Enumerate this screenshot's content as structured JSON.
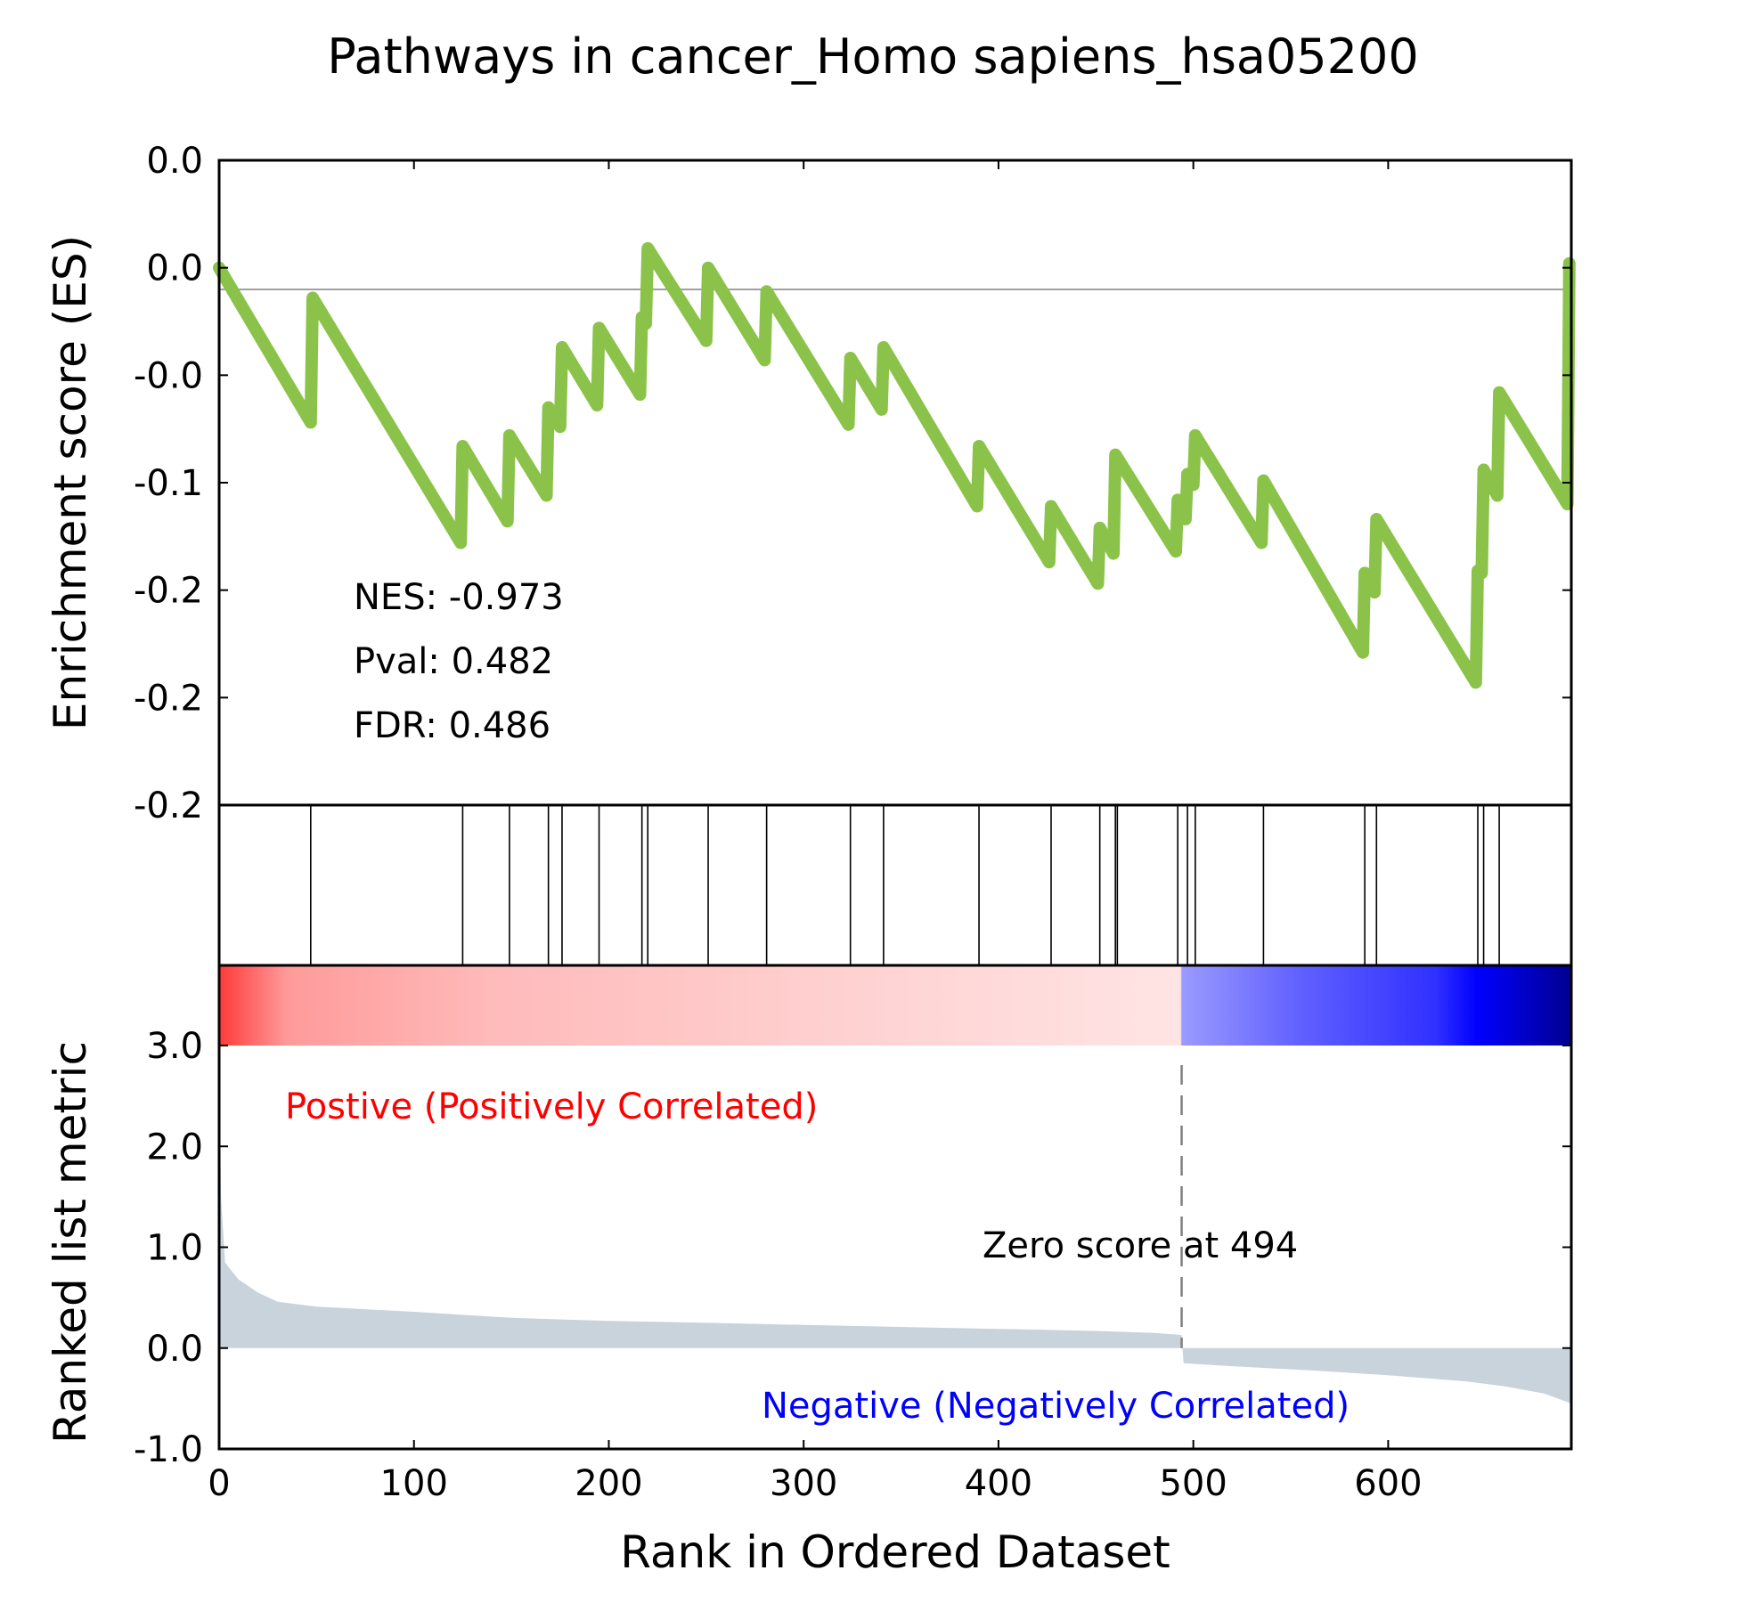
{
  "chart_data": {
    "type": "line",
    "title": "Pathways in cancer_Homo sapiens_hsa05200",
    "xlabel": "Rank in Ordered Dataset",
    "xlim": [
      0,
      694
    ],
    "x_ticks": [
      {
        "value": 0,
        "label": "0"
      },
      {
        "value": 100,
        "label": "100"
      },
      {
        "value": 200,
        "label": "200"
      },
      {
        "value": 300,
        "label": "300"
      },
      {
        "value": 400,
        "label": "400"
      },
      {
        "value": 500,
        "label": "500"
      },
      {
        "value": 600,
        "label": "600"
      }
    ],
    "es_panel": {
      "ylabel": "Enrichment score (ES)",
      "ylim": [
        -0.25,
        0.05
      ],
      "y_ticks": [
        {
          "value": 0.05,
          "label": "0.0"
        },
        {
          "value": 0.0,
          "label": "0.0"
        },
        {
          "value": -0.05,
          "label": "-0.0"
        },
        {
          "value": -0.1,
          "label": "-0.1"
        },
        {
          "value": -0.15,
          "label": "-0.2"
        },
        {
          "value": -0.2,
          "label": "-0.2"
        },
        {
          "value": -0.25,
          "label": "-0.2"
        }
      ],
      "line_color": "#8bc34a",
      "zero_line": true,
      "es_curve": {
        "x": [
          0,
          47,
          48,
          124,
          125,
          148,
          149,
          168,
          169,
          175,
          176,
          194,
          195,
          216,
          217,
          219,
          220,
          250,
          251,
          280,
          281,
          323,
          324,
          340,
          341,
          389,
          390,
          426,
          427,
          451,
          452,
          459,
          460,
          491,
          492,
          496,
          497,
          500,
          501,
          535,
          536,
          587,
          588,
          593,
          594,
          645,
          646,
          648,
          649,
          656,
          657,
          692,
          693
        ],
        "y": [
          0.0,
          -0.072,
          -0.014,
          -0.128,
          -0.083,
          -0.118,
          -0.078,
          -0.106,
          -0.065,
          -0.074,
          -0.037,
          -0.064,
          -0.028,
          -0.059,
          -0.023,
          -0.026,
          0.009,
          -0.034,
          0.0,
          -0.043,
          -0.011,
          -0.073,
          -0.042,
          -0.066,
          -0.037,
          -0.111,
          -0.083,
          -0.137,
          -0.111,
          -0.147,
          -0.121,
          -0.133,
          -0.087,
          -0.132,
          -0.108,
          -0.117,
          -0.096,
          -0.101,
          -0.078,
          -0.128,
          -0.099,
          -0.179,
          -0.142,
          -0.151,
          -0.117,
          -0.193,
          -0.141,
          -0.142,
          -0.094,
          -0.106,
          -0.058,
          -0.11,
          0.002
        ]
      },
      "annotations": {
        "nes": "NES: -0.973",
        "pval": "Pval: 0.482",
        "fdr": "FDR: 0.486"
      }
    },
    "hits_panel": {
      "hit_ranks": [
        47,
        125,
        149,
        169,
        176,
        195,
        217,
        220,
        251,
        281,
        324,
        341,
        390,
        427,
        452,
        460,
        461,
        492,
        497,
        501,
        536,
        588,
        594,
        646,
        649,
        657
      ]
    },
    "metric_panel": {
      "ylabel": "Ranked list metric",
      "ylim": [
        -1.0,
        3.0
      ],
      "y_ticks": [
        {
          "value": 3.0,
          "label": "3.0"
        },
        {
          "value": 2.0,
          "label": "2.0"
        },
        {
          "value": 1.0,
          "label": "1.0"
        },
        {
          "value": 0.0,
          "label": "0.0"
        },
        {
          "value": -1.0,
          "label": "-1.0"
        }
      ],
      "fill_color": "#c8d3dc",
      "zero_score_rank": 494,
      "zero_score_label": "Zero score at 494",
      "positive_label": "Postive (Positively Correlated)",
      "negative_label": "Negative (Negatively Correlated)",
      "positive_color": "#ff0000",
      "negative_color": "#0000ff",
      "metric_curve": {
        "x": [
          0,
          1,
          3,
          5,
          10,
          20,
          30,
          50,
          100,
          150,
          200,
          250,
          300,
          350,
          400,
          450,
          480,
          494,
          495,
          520,
          560,
          600,
          640,
          660,
          680,
          694
        ],
        "y": [
          2.9,
          1.5,
          0.85,
          0.8,
          0.68,
          0.55,
          0.46,
          0.41,
          0.36,
          0.3,
          0.27,
          0.25,
          0.23,
          0.21,
          0.19,
          0.17,
          0.15,
          0.13,
          -0.15,
          -0.18,
          -0.22,
          -0.27,
          -0.33,
          -0.38,
          -0.45,
          -0.55
        ]
      }
    }
  }
}
